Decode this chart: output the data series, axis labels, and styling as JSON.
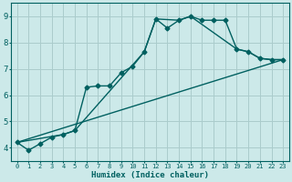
{
  "xlabel": "Humidex (Indice chaleur)",
  "xlim": [
    -0.5,
    23.5
  ],
  "ylim": [
    3.5,
    9.5
  ],
  "yticks": [
    4,
    5,
    6,
    7,
    8,
    9
  ],
  "xticks": [
    0,
    1,
    2,
    3,
    4,
    5,
    6,
    7,
    8,
    9,
    10,
    11,
    12,
    13,
    14,
    15,
    16,
    17,
    18,
    19,
    20,
    21,
    22,
    23
  ],
  "bg_color": "#cce9e9",
  "grid_color": "#aacccc",
  "line_color": "#006060",
  "line1_x": [
    0,
    1,
    2,
    3,
    4,
    5,
    6,
    7,
    8,
    9,
    10,
    11,
    12,
    13,
    14,
    15,
    16,
    17,
    18,
    19,
    20,
    21,
    22,
    23
  ],
  "line1_y": [
    4.2,
    3.9,
    4.15,
    4.4,
    4.5,
    4.65,
    6.3,
    6.35,
    6.35,
    6.85,
    7.1,
    7.65,
    8.9,
    8.55,
    8.85,
    9.0,
    8.85,
    8.85,
    8.85,
    7.75,
    7.65,
    7.4,
    7.35,
    7.35
  ],
  "line2_x": [
    0,
    4,
    5,
    11,
    12,
    14,
    15,
    19,
    20,
    21,
    22,
    23
  ],
  "line2_y": [
    4.2,
    4.5,
    4.65,
    7.65,
    8.9,
    8.85,
    9.0,
    7.75,
    7.65,
    7.4,
    7.35,
    7.35
  ],
  "line3_x": [
    0,
    23
  ],
  "line3_y": [
    4.2,
    7.35
  ],
  "marker": "D",
  "markersize": 2.5,
  "linewidth": 1.0,
  "tick_fontsize_x": 5.0,
  "tick_fontsize_y": 6.5,
  "xlabel_fontsize": 6.5
}
